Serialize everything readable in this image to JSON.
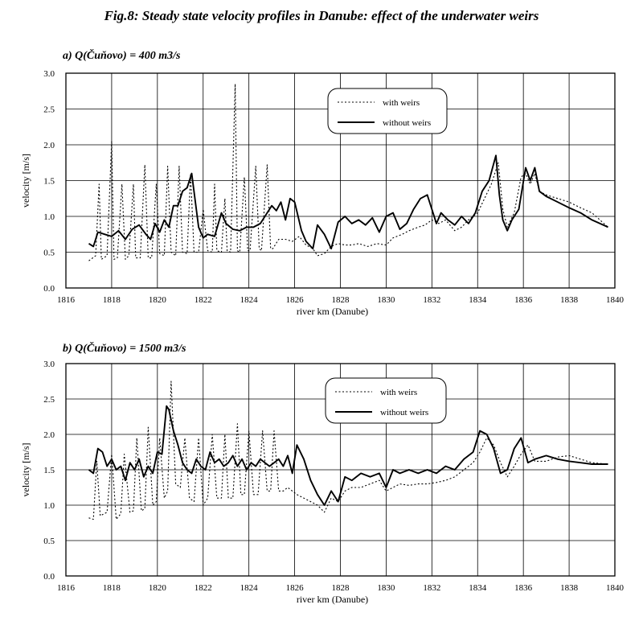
{
  "figure_title": "Fig.8: Steady state velocity profiles in Danube: effect of the underwater weirs",
  "chart_data": [
    {
      "type": "line",
      "title": "a) Q(Čuňovo) = 400 m3/s",
      "xlabel": "river km (Danube)",
      "ylabel": "velocity [m/s]",
      "xlim": [
        1816,
        1840
      ],
      "ylim": [
        0,
        3.0
      ],
      "xticks": [
        "1816",
        "1818",
        "1820",
        "1822",
        "1824",
        "1826",
        "1828",
        "1830",
        "1832",
        "1834",
        "1836",
        "1838",
        "1840"
      ],
      "yticks": [
        "0.0",
        "0.5",
        "1.0",
        "1.5",
        "2.0",
        "2.5",
        "3.0"
      ],
      "grid": true,
      "legend_position": "top-center",
      "series": [
        {
          "name": "with weirs",
          "style": "dotted",
          "x": [
            1817,
            1817.3,
            1817.45,
            1817.55,
            1817.8,
            1818.0,
            1818.1,
            1818.25,
            1818.45,
            1818.6,
            1818.75,
            1818.95,
            1819.05,
            1819.25,
            1819.45,
            1819.6,
            1819.75,
            1819.95,
            1820.1,
            1820.3,
            1820.45,
            1820.6,
            1820.8,
            1820.95,
            1821.1,
            1821.3,
            1821.45,
            1821.6,
            1821.8,
            1822.0,
            1822.2,
            1822.4,
            1822.5,
            1822.6,
            1822.8,
            1822.95,
            1823.05,
            1823.2,
            1823.4,
            1823.5,
            1823.6,
            1823.8,
            1823.95,
            1824.05,
            1824.3,
            1824.45,
            1824.55,
            1824.8,
            1824.95,
            1825.05,
            1825.3,
            1825.6,
            1825.9,
            1826.2,
            1826.5,
            1826.8,
            1827.0,
            1827.3,
            1827.6,
            1827.9,
            1828.2,
            1828.5,
            1828.8,
            1829.2,
            1829.6,
            1830.0,
            1830.3,
            1830.7,
            1831.0,
            1831.4,
            1831.7,
            1832.0,
            1832.3,
            1832.6,
            1833.0,
            1833.3,
            1833.6,
            1834.0,
            1834.3,
            1834.6,
            1834.9,
            1835.1,
            1835.3,
            1835.6,
            1835.9,
            1836.1,
            1836.3,
            1836.5,
            1836.7,
            1837.0,
            1837.5,
            1838.0,
            1838.5,
            1839.0,
            1839.7
          ],
          "y": [
            0.38,
            0.45,
            1.45,
            0.4,
            0.45,
            2.05,
            0.4,
            0.42,
            1.45,
            0.4,
            0.45,
            1.45,
            0.42,
            0.42,
            1.72,
            0.42,
            0.42,
            1.45,
            0.48,
            0.45,
            1.7,
            0.5,
            0.45,
            1.7,
            0.5,
            0.48,
            1.6,
            0.5,
            0.5,
            1.1,
            0.52,
            0.5,
            1.45,
            0.52,
            0.5,
            1.25,
            0.52,
            0.5,
            2.85,
            0.52,
            0.5,
            1.55,
            0.52,
            0.52,
            1.7,
            0.55,
            0.52,
            1.72,
            0.55,
            0.55,
            0.68,
            0.68,
            0.65,
            0.72,
            0.6,
            0.55,
            0.45,
            0.48,
            0.58,
            0.62,
            0.6,
            0.6,
            0.62,
            0.58,
            0.62,
            0.6,
            0.7,
            0.75,
            0.8,
            0.85,
            0.88,
            0.95,
            0.9,
            0.95,
            0.8,
            0.85,
            0.95,
            1.05,
            1.25,
            1.45,
            1.75,
            1.1,
            0.85,
            1.05,
            1.55,
            1.6,
            1.45,
            1.6,
            1.35,
            1.3,
            1.25,
            1.2,
            1.12,
            1.05,
            0.85
          ]
        },
        {
          "name": "without weirs",
          "style": "solid",
          "x": [
            1817,
            1817.2,
            1817.4,
            1817.7,
            1818.0,
            1818.3,
            1818.6,
            1818.9,
            1819.2,
            1819.5,
            1819.7,
            1819.9,
            1820.1,
            1820.3,
            1820.5,
            1820.7,
            1820.9,
            1821.1,
            1821.3,
            1821.5,
            1821.8,
            1822.0,
            1822.2,
            1822.5,
            1822.8,
            1823.0,
            1823.3,
            1823.6,
            1823.9,
            1824.2,
            1824.5,
            1824.8,
            1825.0,
            1825.2,
            1825.4,
            1825.6,
            1825.8,
            1826.0,
            1826.3,
            1826.5,
            1826.8,
            1827.0,
            1827.3,
            1827.6,
            1827.9,
            1828.2,
            1828.5,
            1828.8,
            1829.1,
            1829.4,
            1829.7,
            1830.0,
            1830.3,
            1830.6,
            1830.9,
            1831.2,
            1831.5,
            1831.8,
            1832.0,
            1832.2,
            1832.4,
            1832.7,
            1833.0,
            1833.3,
            1833.6,
            1833.9,
            1834.2,
            1834.5,
            1834.8,
            1834.95,
            1835.1,
            1835.3,
            1835.5,
            1835.8,
            1836.1,
            1836.3,
            1836.5,
            1836.7,
            1837.0,
            1837.5,
            1838.0,
            1838.5,
            1839.0,
            1839.7
          ],
          "y": [
            0.62,
            0.58,
            0.78,
            0.75,
            0.72,
            0.8,
            0.68,
            0.82,
            0.88,
            0.75,
            0.68,
            0.9,
            0.78,
            0.95,
            0.85,
            1.15,
            1.15,
            1.35,
            1.4,
            1.6,
            0.85,
            0.7,
            0.75,
            0.72,
            1.05,
            0.9,
            0.82,
            0.8,
            0.85,
            0.85,
            0.9,
            1.05,
            1.15,
            1.08,
            1.2,
            0.95,
            1.25,
            1.2,
            0.8,
            0.65,
            0.55,
            0.88,
            0.75,
            0.55,
            0.92,
            1.0,
            0.9,
            0.95,
            0.88,
            0.98,
            0.78,
            1.0,
            1.05,
            0.82,
            0.9,
            1.1,
            1.25,
            1.3,
            1.1,
            0.9,
            1.05,
            0.95,
            0.88,
            1.0,
            0.9,
            1.05,
            1.35,
            1.5,
            1.85,
            1.3,
            0.95,
            0.8,
            0.95,
            1.1,
            1.68,
            1.5,
            1.68,
            1.35,
            1.28,
            1.2,
            1.12,
            1.05,
            0.95,
            0.85
          ]
        }
      ]
    },
    {
      "type": "line",
      "title": "b) Q(Čuňovo) = 1500 m3/s",
      "xlabel": "river km (Danube)",
      "ylabel": "velocity [m/s]",
      "xlim": [
        1816,
        1840
      ],
      "ylim": [
        0,
        3.0
      ],
      "xticks": [
        "1816",
        "1818",
        "1820",
        "1822",
        "1824",
        "1826",
        "1828",
        "1830",
        "1832",
        "1834",
        "1836",
        "1838",
        "1840"
      ],
      "yticks": [
        "0.0",
        "0.5",
        "1.0",
        "1.5",
        "2.0",
        "2.5",
        "3.0"
      ],
      "grid": true,
      "legend_position": "top-center",
      "series": [
        {
          "name": "with weirs",
          "style": "dotted",
          "x": [
            1817,
            1817.2,
            1817.35,
            1817.5,
            1817.8,
            1818.0,
            1818.2,
            1818.4,
            1818.55,
            1818.8,
            1818.95,
            1819.1,
            1819.3,
            1819.45,
            1819.6,
            1819.8,
            1819.95,
            1820.1,
            1820.3,
            1820.45,
            1820.6,
            1820.8,
            1821.0,
            1821.2,
            1821.4,
            1821.6,
            1821.8,
            1822.0,
            1822.2,
            1822.4,
            1822.6,
            1822.8,
            1822.95,
            1823.1,
            1823.3,
            1823.5,
            1823.65,
            1823.8,
            1824.0,
            1824.2,
            1824.4,
            1824.6,
            1824.8,
            1824.95,
            1825.1,
            1825.3,
            1825.5,
            1825.7,
            1825.9,
            1826.1,
            1826.4,
            1826.7,
            1827.0,
            1827.3,
            1827.6,
            1827.9,
            1828.2,
            1828.5,
            1828.9,
            1829.3,
            1829.7,
            1830.0,
            1830.3,
            1830.6,
            1831.0,
            1831.4,
            1831.8,
            1832.2,
            1832.6,
            1833.0,
            1833.4,
            1833.8,
            1834.1,
            1834.4,
            1834.7,
            1835.0,
            1835.3,
            1835.6,
            1835.9,
            1836.2,
            1836.5,
            1837.0,
            1837.5,
            1838.0,
            1838.5,
            1839.0,
            1839.7
          ],
          "y": [
            0.82,
            0.8,
            1.62,
            0.85,
            0.9,
            1.72,
            0.8,
            0.88,
            1.72,
            0.9,
            0.92,
            1.95,
            0.92,
            0.95,
            2.1,
            1.0,
            1.05,
            1.95,
            1.1,
            1.2,
            2.75,
            1.3,
            1.25,
            1.95,
            1.1,
            1.05,
            1.95,
            1.0,
            1.1,
            2.0,
            1.1,
            1.1,
            2.0,
            1.1,
            1.1,
            2.15,
            1.15,
            1.15,
            2.05,
            1.15,
            1.15,
            2.05,
            1.2,
            1.2,
            2.05,
            1.2,
            1.2,
            1.25,
            1.2,
            1.15,
            1.1,
            1.05,
            1.0,
            0.9,
            1.1,
            1.05,
            1.2,
            1.25,
            1.25,
            1.3,
            1.35,
            1.2,
            1.25,
            1.3,
            1.28,
            1.3,
            1.3,
            1.32,
            1.35,
            1.4,
            1.5,
            1.6,
            1.75,
            1.95,
            1.85,
            1.6,
            1.4,
            1.55,
            1.72,
            1.85,
            1.62,
            1.62,
            1.68,
            1.7,
            1.65,
            1.6,
            1.58
          ]
        },
        {
          "name": "without weirs",
          "style": "solid",
          "x": [
            1817,
            1817.2,
            1817.4,
            1817.6,
            1817.8,
            1818.0,
            1818.2,
            1818.4,
            1818.6,
            1818.8,
            1819.0,
            1819.2,
            1819.4,
            1819.6,
            1819.8,
            1820.0,
            1820.2,
            1820.4,
            1820.5,
            1820.7,
            1820.9,
            1821.1,
            1821.3,
            1821.5,
            1821.7,
            1821.9,
            1822.1,
            1822.3,
            1822.5,
            1822.7,
            1822.9,
            1823.1,
            1823.3,
            1823.5,
            1823.7,
            1823.9,
            1824.1,
            1824.3,
            1824.5,
            1824.7,
            1824.9,
            1825.1,
            1825.3,
            1825.5,
            1825.7,
            1825.9,
            1826.1,
            1826.4,
            1826.7,
            1827.0,
            1827.3,
            1827.6,
            1827.9,
            1828.2,
            1828.5,
            1828.9,
            1829.3,
            1829.7,
            1830.0,
            1830.3,
            1830.6,
            1831.0,
            1831.4,
            1831.8,
            1832.2,
            1832.6,
            1833.0,
            1833.4,
            1833.8,
            1834.1,
            1834.4,
            1834.7,
            1835.0,
            1835.3,
            1835.6,
            1835.9,
            1836.2,
            1836.5,
            1837.0,
            1837.5,
            1838.0,
            1838.5,
            1839.0,
            1839.7
          ],
          "y": [
            1.5,
            1.45,
            1.8,
            1.75,
            1.55,
            1.65,
            1.5,
            1.55,
            1.35,
            1.6,
            1.5,
            1.65,
            1.4,
            1.55,
            1.45,
            1.75,
            1.72,
            2.4,
            2.35,
            2.05,
            1.85,
            1.6,
            1.5,
            1.45,
            1.65,
            1.55,
            1.5,
            1.75,
            1.6,
            1.65,
            1.55,
            1.6,
            1.7,
            1.55,
            1.65,
            1.5,
            1.6,
            1.55,
            1.65,
            1.6,
            1.55,
            1.6,
            1.65,
            1.55,
            1.7,
            1.45,
            1.85,
            1.65,
            1.35,
            1.15,
            1.0,
            1.2,
            1.05,
            1.4,
            1.35,
            1.45,
            1.4,
            1.45,
            1.25,
            1.5,
            1.45,
            1.5,
            1.45,
            1.5,
            1.45,
            1.55,
            1.5,
            1.65,
            1.75,
            2.05,
            2.0,
            1.8,
            1.45,
            1.5,
            1.8,
            1.95,
            1.6,
            1.65,
            1.7,
            1.65,
            1.62,
            1.6,
            1.58,
            1.58
          ]
        }
      ]
    }
  ]
}
